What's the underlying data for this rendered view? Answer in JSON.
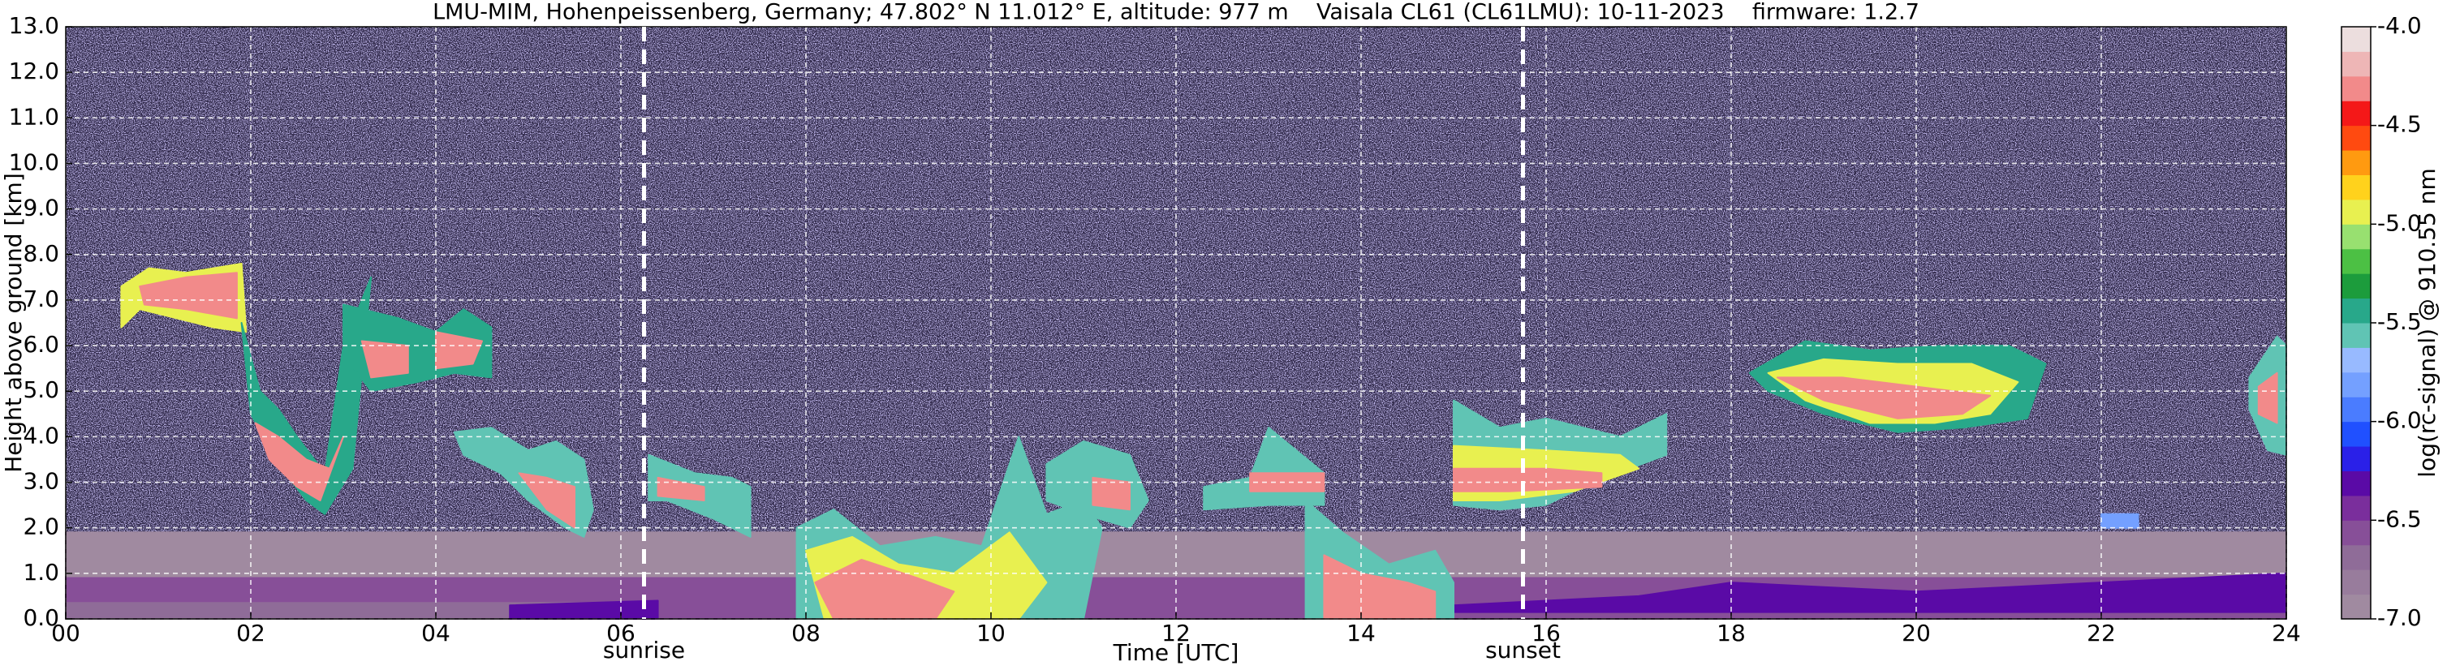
{
  "chart_data": {
    "type": "heatmap",
    "title": "LMU-MIM, Hohenpeissenberg, Germany; 47.802° N 11.012° E, altitude: 977 m    Vaisala CL61 (CL61LMU): 10-11-2023    firmware: 1.2.7",
    "xlabel": "Time [UTC]",
    "ylabel": "Height above ground [km]",
    "xlim": [
      0,
      24
    ],
    "xticks": [
      {
        "value": 0,
        "label": "00"
      },
      {
        "value": 2,
        "label": "02"
      },
      {
        "value": 4,
        "label": "04"
      },
      {
        "value": 6,
        "label": "06"
      },
      {
        "value": 8,
        "label": "08"
      },
      10,
      12,
      14,
      16,
      18,
      20,
      22,
      24
    ],
    "ylim": [
      0,
      13
    ],
    "yticks": [
      {
        "value": 0,
        "label": "0.0"
      },
      {
        "value": 1,
        "label": "1.0"
      },
      {
        "value": 2,
        "label": "2.0"
      },
      {
        "value": 3,
        "label": "3.0"
      },
      {
        "value": 4,
        "label": "4.0"
      },
      {
        "value": 5,
        "label": "5.0"
      },
      {
        "value": 6,
        "label": "6.0"
      },
      {
        "value": 7,
        "label": "7.0"
      },
      {
        "value": 8,
        "label": "8.0"
      },
      {
        "value": 9,
        "label": "9.0"
      },
      {
        "value": 10,
        "label": "10.0"
      },
      {
        "value": 11,
        "label": "11.0"
      },
      {
        "value": 12,
        "label": "12.0"
      },
      {
        "value": 13,
        "label": "13.0"
      }
    ],
    "grid": true,
    "markers": [
      {
        "label": "sunrise",
        "x": 6.25
      },
      {
        "label": "sunset",
        "x": 15.75
      }
    ],
    "colorbar": {
      "label": "log(rc-signal) @ 910.55 nm",
      "lim": [
        -7.0,
        -4.0
      ],
      "ticks": [
        {
          "value": -7.0,
          "label": "-7.0"
        },
        {
          "value": -6.5,
          "label": "-6.5"
        },
        {
          "value": -6.0,
          "label": "-6.0"
        },
        {
          "value": -5.5,
          "label": "-5.5"
        },
        {
          "value": -5.0,
          "label": "-5.0"
        },
        {
          "value": -4.5,
          "label": "-4.5"
        },
        {
          "value": -4.0,
          "label": "-4.0"
        }
      ],
      "colors": [
        "#a08aa0",
        "#987c9c",
        "#8f6c98",
        "#874f98",
        "#7a2e9c",
        "#5a0aa6",
        "#2a20e8",
        "#2050ff",
        "#4a7cff",
        "#74a0ff",
        "#98baff",
        "#60c4b4",
        "#28a88a",
        "#1c9c3c",
        "#4cc044",
        "#98e070",
        "#e8f050",
        "#ffd21c",
        "#ff9a10",
        "#ff4a10",
        "#f41818",
        "#f28a8a",
        "#eeb6b6",
        "#ecdede"
      ],
      "top_color": "#ffffff"
    },
    "regions": [
      {
        "x": [
          0,
          24,
          24,
          0
        ],
        "y": [
          0,
          0,
          1.9,
          1.9
        ],
        "value": -6.95
      },
      {
        "x": [
          0,
          24,
          24,
          0
        ],
        "y": [
          0,
          0,
          0.9,
          0.9
        ],
        "value": -6.6
      },
      {
        "x": [
          0,
          6.3,
          6.3,
          0
        ],
        "y": [
          0,
          0,
          0.35,
          0.35
        ],
        "value": -6.7
      },
      {
        "x": [
          4.8,
          6.4,
          6.4,
          4.8
        ],
        "y": [
          0,
          0,
          0.4,
          0.3
        ],
        "value": -6.3
      },
      {
        "x": [
          15,
          17,
          18,
          19,
          20,
          21,
          22,
          23,
          24,
          24,
          15
        ],
        "y": [
          0.3,
          0.5,
          0.8,
          0.7,
          0.6,
          0.7,
          0.8,
          0.9,
          1.0,
          0.15,
          0.15
        ],
        "value": -6.3
      },
      {
        "x": [
          0.6,
          0.9,
          1.3,
          1.9,
          1.95,
          1.6,
          1.2,
          0.8,
          0.6
        ],
        "y": [
          7.3,
          7.7,
          7.6,
          7.8,
          6.3,
          6.4,
          6.6,
          6.8,
          6.4
        ],
        "value": -5.0
      },
      {
        "x": [
          0.8,
          1.3,
          1.85,
          1.85,
          1.3,
          0.85
        ],
        "y": [
          7.3,
          7.5,
          7.6,
          6.6,
          6.8,
          6.9
        ],
        "value": -4.3
      },
      {
        "x": [
          1.9,
          2.1,
          2.3,
          2.5,
          2.8,
          3.0,
          3.3,
          3.1,
          2.8,
          2.6,
          2.3,
          2.0
        ],
        "y": [
          6.5,
          5.0,
          4.6,
          4.0,
          3.2,
          6.0,
          7.5,
          3.3,
          2.3,
          2.6,
          3.4,
          4.5
        ],
        "value": -5.5
      },
      {
        "x": [
          2.05,
          2.3,
          2.6,
          2.85,
          3.0,
          2.75,
          2.5,
          2.2
        ],
        "y": [
          4.3,
          4.0,
          3.5,
          3.3,
          4.0,
          2.6,
          2.9,
          3.5
        ],
        "value": -4.3
      },
      {
        "x": [
          3.0,
          3.6,
          4.0,
          4.3,
          4.6,
          4.6,
          4.2,
          3.8,
          3.3,
          3.0
        ],
        "y": [
          6.9,
          6.6,
          6.3,
          6.8,
          6.4,
          5.3,
          5.4,
          5.2,
          5.0,
          5.8
        ],
        "value": -5.5
      },
      {
        "x": [
          3.2,
          3.7,
          3.7,
          3.3
        ],
        "y": [
          6.1,
          6.0,
          5.4,
          5.3
        ],
        "value": -4.3
      },
      {
        "x": [
          4.0,
          4.5,
          4.4,
          4.0
        ],
        "y": [
          6.3,
          6.1,
          5.6,
          5.5
        ],
        "value": -4.3
      },
      {
        "x": [
          4.2,
          4.6,
          5.0,
          5.3,
          5.6,
          5.7,
          5.6,
          5.4,
          5.0,
          4.7,
          4.3
        ],
        "y": [
          4.1,
          4.2,
          3.7,
          3.9,
          3.5,
          2.4,
          1.8,
          2.0,
          2.6,
          3.2,
          3.6
        ],
        "value": -5.6
      },
      {
        "x": [
          4.9,
          5.2,
          5.5,
          5.5,
          5.2
        ],
        "y": [
          3.2,
          3.1,
          2.9,
          2.0,
          2.4
        ],
        "value": -4.3
      },
      {
        "x": [
          6.3,
          6.8,
          7.2,
          7.4,
          7.4,
          7.0,
          6.5,
          6.3
        ],
        "y": [
          3.6,
          3.2,
          3.1,
          2.9,
          1.8,
          2.2,
          2.6,
          2.6
        ],
        "value": -5.6
      },
      {
        "x": [
          6.4,
          6.9,
          6.9,
          6.4
        ],
        "y": [
          3.1,
          2.9,
          2.6,
          2.7
        ],
        "value": -4.3
      },
      {
        "x": [
          7.9,
          8.3,
          8.8,
          9.4,
          9.9,
          10.3,
          10.6,
          11.0,
          11.2,
          11.0,
          10.5,
          9.8,
          8.6,
          7.9
        ],
        "y": [
          2.0,
          2.4,
          1.6,
          1.8,
          1.6,
          4.0,
          2.3,
          2.6,
          2.0,
          0,
          0,
          0,
          0,
          0
        ],
        "value": -5.6
      },
      {
        "x": [
          8.0,
          8.5,
          9.0,
          9.6,
          10.2,
          10.6,
          10.3,
          9.4,
          8.2
        ],
        "y": [
          1.5,
          1.8,
          1.2,
          1.0,
          1.9,
          0.8,
          0,
          0,
          0
        ],
        "value": -5.0
      },
      {
        "x": [
          8.1,
          8.6,
          9.2,
          9.6,
          9.4,
          8.3
        ],
        "y": [
          0.8,
          1.3,
          0.9,
          0.6,
          0,
          0
        ],
        "value": -4.3
      },
      {
        "x": [
          10.6,
          11.0,
          11.5,
          11.7,
          11.5,
          11.0,
          10.6
        ],
        "y": [
          3.4,
          3.9,
          3.6,
          2.6,
          2.0,
          2.3,
          2.6
        ],
        "value": -5.6
      },
      {
        "x": [
          11.1,
          11.5,
          11.5,
          11.1
        ],
        "y": [
          3.1,
          3.0,
          2.4,
          2.5
        ],
        "value": -4.3
      },
      {
        "x": [
          12.3,
          12.8,
          13.0,
          13.6,
          13.6,
          13.0,
          12.3
        ],
        "y": [
          2.9,
          3.1,
          4.2,
          3.2,
          2.5,
          2.5,
          2.4
        ],
        "value": -5.6
      },
      {
        "x": [
          12.8,
          13.6,
          13.6,
          12.8
        ],
        "y": [
          3.2,
          3.2,
          2.8,
          2.8
        ],
        "value": -4.3
      },
      {
        "x": [
          13.4,
          13.8,
          14.3,
          14.8,
          15.0,
          15.0,
          13.4
        ],
        "y": [
          2.6,
          1.9,
          1.2,
          1.5,
          0.8,
          0,
          0
        ],
        "value": -5.6
      },
      {
        "x": [
          13.6,
          14.0,
          14.5,
          14.8,
          14.8,
          13.6
        ],
        "y": [
          1.4,
          1.0,
          0.8,
          0.6,
          0,
          0
        ],
        "value": -4.3
      },
      {
        "x": [
          15.0,
          15.5,
          16.0,
          16.8,
          17.3,
          17.3,
          16.5,
          16.0,
          15.5,
          15.0
        ],
        "y": [
          4.8,
          4.2,
          4.4,
          4.0,
          4.5,
          3.6,
          3.0,
          2.5,
          2.4,
          2.5
        ],
        "value": -5.6
      },
      {
        "x": [
          15.0,
          16.0,
          16.8,
          17.0,
          16.3,
          15.5,
          15.0
        ],
        "y": [
          3.8,
          3.7,
          3.6,
          3.3,
          2.8,
          2.6,
          2.6
        ],
        "value": -5.0
      },
      {
        "x": [
          15.0,
          16.0,
          16.6,
          16.6,
          15.6,
          15.0
        ],
        "y": [
          3.3,
          3.3,
          3.2,
          2.9,
          2.8,
          2.8
        ],
        "value": -4.3
      },
      {
        "x": [
          18.2,
          18.8,
          19.5,
          20.3,
          21.0,
          21.4,
          21.2,
          20.5,
          19.8,
          19.0,
          18.4
        ],
        "y": [
          5.4,
          6.1,
          5.9,
          6.0,
          6.0,
          5.6,
          4.4,
          4.2,
          4.1,
          4.5,
          5.0
        ],
        "value": -5.5
      },
      {
        "x": [
          18.4,
          19.0,
          19.8,
          20.6,
          21.1,
          20.8,
          20.2,
          19.5,
          18.8
        ],
        "y": [
          5.4,
          5.7,
          5.6,
          5.6,
          5.2,
          4.5,
          4.3,
          4.3,
          4.8
        ],
        "value": -5.0
      },
      {
        "x": [
          18.5,
          19.2,
          20.0,
          20.8,
          20.5,
          19.8,
          19.0
        ],
        "y": [
          5.3,
          5.3,
          5.1,
          4.9,
          4.5,
          4.4,
          4.8
        ],
        "value": -4.3
      },
      {
        "x": [
          22.0,
          22.4,
          22.4,
          22.0
        ],
        "y": [
          2.3,
          2.3,
          2.0,
          2.0
        ],
        "value": -5.8
      },
      {
        "x": [
          23.6,
          23.9,
          24,
          24,
          23.8,
          23.6
        ],
        "y": [
          5.3,
          6.2,
          6.0,
          3.6,
          3.7,
          4.6
        ],
        "value": -5.6
      },
      {
        "x": [
          23.7,
          23.9,
          23.9,
          23.7
        ],
        "y": [
          5.1,
          5.4,
          4.3,
          4.5
        ],
        "value": -4.3
      }
    ]
  }
}
